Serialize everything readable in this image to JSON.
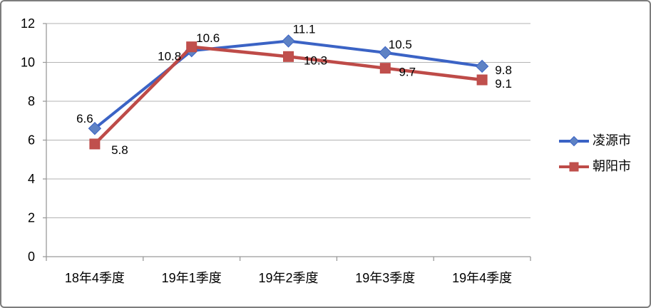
{
  "chart_data": {
    "type": "line",
    "title": "",
    "xlabel": "",
    "ylabel": "",
    "categories": [
      "18年4季度",
      "19年1季度",
      "19年2季度",
      "19年3季度",
      "19年4季度"
    ],
    "series": [
      {
        "name": "凌源市",
        "values": [
          6.6,
          10.6,
          11.1,
          10.5,
          9.8
        ],
        "point_labels": [
          "6.6",
          "10.6",
          "11.1",
          "10.5",
          "9.8"
        ],
        "color": "#3b63c5",
        "marker_fill": "#5e82c4",
        "marker": "diamond"
      },
      {
        "name": "朝阳市",
        "values": [
          5.8,
          10.8,
          10.3,
          9.7,
          9.1
        ],
        "point_labels": [
          "5.8",
          "10.8",
          "10.3",
          "9.7",
          "9.1"
        ],
        "color": "#be4b48",
        "marker_fill": "#c0504d",
        "marker": "square"
      }
    ],
    "ylim": [
      0,
      12
    ],
    "yticks": [
      0,
      2,
      4,
      6,
      8,
      10,
      12
    ],
    "grid": true,
    "legend_position": "right",
    "label_offsets": [
      [
        [
          -14,
          -14
        ],
        [
          23,
          -18
        ],
        [
          22,
          -17
        ],
        [
          21,
          -12
        ],
        [
          30,
          5
        ]
      ],
      [
        [
          35,
          8
        ],
        [
          -31,
          13
        ],
        [
          38,
          5
        ],
        [
          31,
          5
        ],
        [
          30,
          5
        ]
      ]
    ]
  },
  "colors": {
    "gridline": "#b3b3b3",
    "axis": "#9a9a9a",
    "text": "#000000",
    "border": "#7d7d7d",
    "background": "#ffffff"
  }
}
